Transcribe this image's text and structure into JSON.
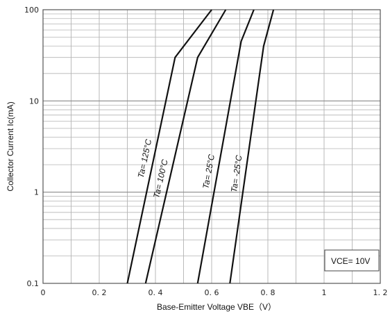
{
  "chart_data": {
    "type": "line",
    "title": "",
    "xlabel": "Base-Emitter Voltage  VBE（V）",
    "ylabel": "Collector Current  Ic(mA)",
    "xlim": [
      0,
      1.2
    ],
    "ylim": [
      0.1,
      100
    ],
    "yscale": "log",
    "grid": true,
    "x_ticks": [
      0,
      0.2,
      0.4,
      0.6,
      0.8,
      1,
      1.2
    ],
    "x_tick_labels": [
      "0",
      "0. 2",
      "0. 4",
      "0. 6",
      "0. 8",
      "1",
      "1. 2"
    ],
    "y_ticks": [
      0.1,
      1,
      10,
      100
    ],
    "y_tick_labels": [
      "0.1",
      "1",
      "10",
      "100"
    ],
    "series": [
      {
        "name": "Ta= 125°C",
        "x": [
          0.3,
          0.47,
          0.6
        ],
        "y": [
          0.1,
          30,
          100
        ]
      },
      {
        "name": "Ta= 100°C",
        "x": [
          0.365,
          0.55,
          0.65
        ],
        "y": [
          0.1,
          30,
          100
        ]
      },
      {
        "name": "Ta= 25°C",
        "x": [
          0.55,
          0.705,
          0.75
        ],
        "y": [
          0.1,
          45,
          100
        ]
      },
      {
        "name": "Ta= -25°C",
        "x": [
          0.665,
          0.785,
          0.82
        ],
        "y": [
          0.1,
          40,
          100
        ]
      }
    ],
    "annotations": [
      "VCE= 10V"
    ]
  }
}
